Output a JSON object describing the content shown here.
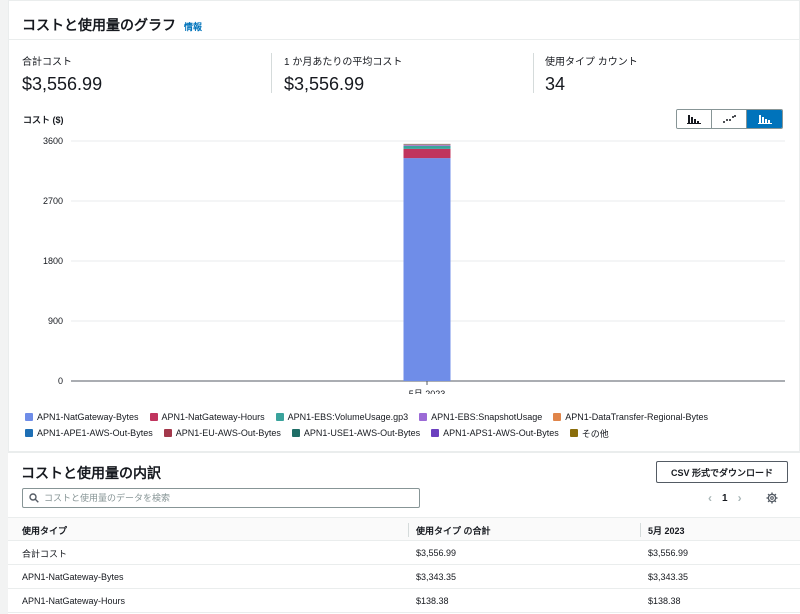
{
  "graph_panel": {
    "title": "コストと使用量のグラフ",
    "info_link": "情報",
    "metrics": [
      {
        "label": "合計コスト",
        "value": "$3,556.99"
      },
      {
        "label": "1 か月あたりの平均コスト",
        "value": "$3,556.99"
      },
      {
        "label": "使用タイプ カウント",
        "value": "34"
      }
    ],
    "chart_toggle": {
      "options": [
        "bar-chart-icon",
        "line-chart-icon",
        "stacked-bar-chart-icon"
      ],
      "selected": "stacked-bar-chart-icon"
    }
  },
  "chart_data": {
    "type": "bar",
    "stacked": true,
    "ylabel": "コスト ($)",
    "categories": [
      "5月 2023"
    ],
    "yticks": [
      0,
      900,
      1800,
      2700,
      3600
    ],
    "ylim": [
      0,
      3600
    ],
    "grid": true,
    "legend_position": "bottom",
    "series": [
      {
        "name": "APN1-NatGateway-Bytes",
        "values": [
          3343.35
        ],
        "color": "#6f8de8"
      },
      {
        "name": "APN1-NatGateway-Hours",
        "values": [
          138.38
        ],
        "color": "#c0345e"
      },
      {
        "name": "APN1-EBS:VolumeUsage.gp3",
        "values": [
          45
        ],
        "color": "#3aa39c"
      },
      {
        "name": "APN1-EBS:SnapshotUsage",
        "values": [
          12
        ],
        "color": "#9b6ad6"
      },
      {
        "name": "APN1-DataTransfer-Regional-Bytes",
        "values": [
          8
        ],
        "color": "#e0854a"
      },
      {
        "name": "APN1-APE1-AWS-Out-Bytes",
        "values": [
          4
        ],
        "color": "#1e6fb5"
      },
      {
        "name": "APN1-EU-AWS-Out-Bytes",
        "values": [
          2
        ],
        "color": "#a3384b"
      },
      {
        "name": "APN1-USE1-AWS-Out-Bytes",
        "values": [
          2
        ],
        "color": "#1f6e67"
      },
      {
        "name": "APN1-APS1-AWS-Out-Bytes",
        "values": [
          1
        ],
        "color": "#6b3fbf"
      },
      {
        "name": "その他",
        "values": [
          1
        ],
        "color": "#8a6d0b"
      }
    ]
  },
  "breakdown": {
    "title": "コストと使用量の内訳",
    "csv_button": "CSV 形式でダウンロード",
    "search_placeholder": "コストと使用量のデータを検索",
    "page": "1",
    "columns": [
      "使用タイプ",
      "使用タイプ の合計",
      "5月 2023"
    ],
    "rows": [
      [
        "合計コスト",
        "$3,556.99",
        "$3,556.99"
      ],
      [
        "APN1-NatGateway-Bytes",
        "$3,343.35",
        "$3,343.35"
      ],
      [
        "APN1-NatGateway-Hours",
        "$138.38",
        "$138.38"
      ]
    ]
  }
}
